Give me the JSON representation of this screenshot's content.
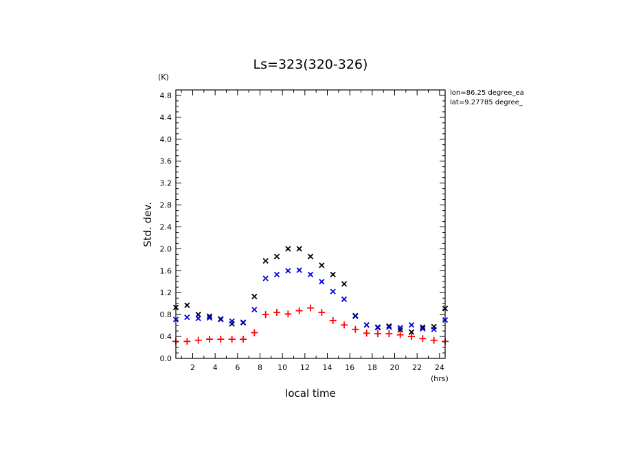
{
  "chart_data": {
    "type": "scatter",
    "title": "Ls=323(320-326)",
    "xlabel": "local time",
    "ylabel": "Std. dev.",
    "x_unit": "(hrs)",
    "y_unit": "(K)",
    "xlim": [
      0.5,
      24.5
    ],
    "ylim": [
      0.0,
      4.9
    ],
    "xticks": [
      2,
      4,
      6,
      8,
      10,
      12,
      14,
      16,
      18,
      20,
      22,
      24
    ],
    "yticks": [
      0.0,
      0.4,
      0.8,
      1.2,
      1.6,
      2.0,
      2.4,
      2.8,
      3.2,
      3.6,
      4.0,
      4.4,
      4.8
    ],
    "ytick_labels": [
      "0.0",
      "0.4",
      "0.8",
      "1.2",
      "1.6",
      "2.0",
      "2.4",
      "2.8",
      "3.2",
      "3.6",
      "4.0",
      "4.4",
      "4.8"
    ],
    "annotations": [
      "lon=86.25 degree_ea",
      "lat=9.27785 degree_"
    ],
    "grid": false,
    "x": [
      0.5,
      1.5,
      2.5,
      3.5,
      4.5,
      5.5,
      6.5,
      7.5,
      8.5,
      9.5,
      10.5,
      11.5,
      12.5,
      13.5,
      14.5,
      15.5,
      16.5,
      17.5,
      18.5,
      19.5,
      20.5,
      21.5,
      22.5,
      23.5,
      24.5
    ],
    "series": [
      {
        "color": "#000000",
        "marker": "x",
        "values": [
          0.93,
          0.97,
          0.8,
          0.77,
          0.72,
          0.63,
          0.65,
          1.13,
          1.78,
          1.86,
          2.0,
          2.0,
          1.86,
          1.7,
          1.53,
          1.36,
          0.78,
          0.61,
          0.57,
          0.59,
          0.52,
          0.48,
          0.57,
          0.58,
          0.91
        ]
      },
      {
        "color": "#0000dd",
        "marker": "x",
        "values": [
          0.71,
          0.75,
          0.73,
          0.74,
          0.71,
          0.68,
          0.66,
          0.89,
          1.46,
          1.53,
          1.6,
          1.61,
          1.53,
          1.4,
          1.22,
          1.08,
          0.77,
          0.61,
          0.56,
          0.57,
          0.56,
          0.61,
          0.54,
          0.53,
          0.7
        ]
      },
      {
        "color": "#ff0000",
        "marker": "+",
        "values": [
          0.31,
          0.31,
          0.33,
          0.35,
          0.35,
          0.35,
          0.35,
          0.47,
          0.8,
          0.84,
          0.81,
          0.87,
          0.92,
          0.84,
          0.69,
          0.61,
          0.53,
          0.46,
          0.45,
          0.45,
          0.43,
          0.4,
          0.36,
          0.33,
          0.31
        ]
      }
    ]
  }
}
